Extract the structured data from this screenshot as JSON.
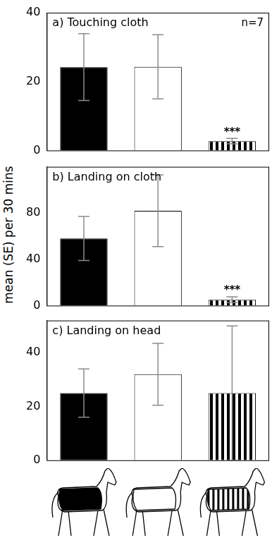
{
  "ylabel": "mean (SE) per 30 mins",
  "chart_data": [
    {
      "type": "bar",
      "title": "a) Touching cloth",
      "categories": [
        null,
        null,
        null
      ],
      "values": [
        24.2,
        24.3,
        2.7
      ],
      "errors": [
        9.7,
        9.3,
        0.8
      ],
      "colors": [
        "#000000",
        "#ffffff",
        "#000000"
      ],
      "ylim": [
        0,
        40
      ],
      "yticks": [
        0,
        20,
        40
      ],
      "grid": false,
      "annotations": [
        {
          "text": "n=7"
        },
        {
          "x": 2,
          "text": "***"
        }
      ]
    },
    {
      "type": "bar",
      "title": "b) Landing on cloth",
      "categories": [
        null,
        null,
        null
      ],
      "values": [
        58,
        82,
        5
      ],
      "errors": [
        19,
        31,
        2.5
      ],
      "colors": [
        "#000000",
        "#ffffff",
        "#000000"
      ],
      "ylim": [
        0,
        120
      ],
      "yticks": [
        0,
        40,
        80
      ],
      "grid": false,
      "annotations": [
        {
          "x": 2,
          "text": "***"
        }
      ]
    },
    {
      "type": "bar",
      "title": "c) Landing on head",
      "categories": [
        null,
        null,
        null
      ],
      "values": [
        25,
        32,
        25
      ],
      "errors": [
        9,
        11.5,
        25
      ],
      "colors": [
        "#000000",
        "#ffffff",
        "#000000"
      ],
      "ylim": [
        0,
        52
      ],
      "yticks": [
        0,
        20,
        40
      ],
      "grid": false
    }
  ]
}
